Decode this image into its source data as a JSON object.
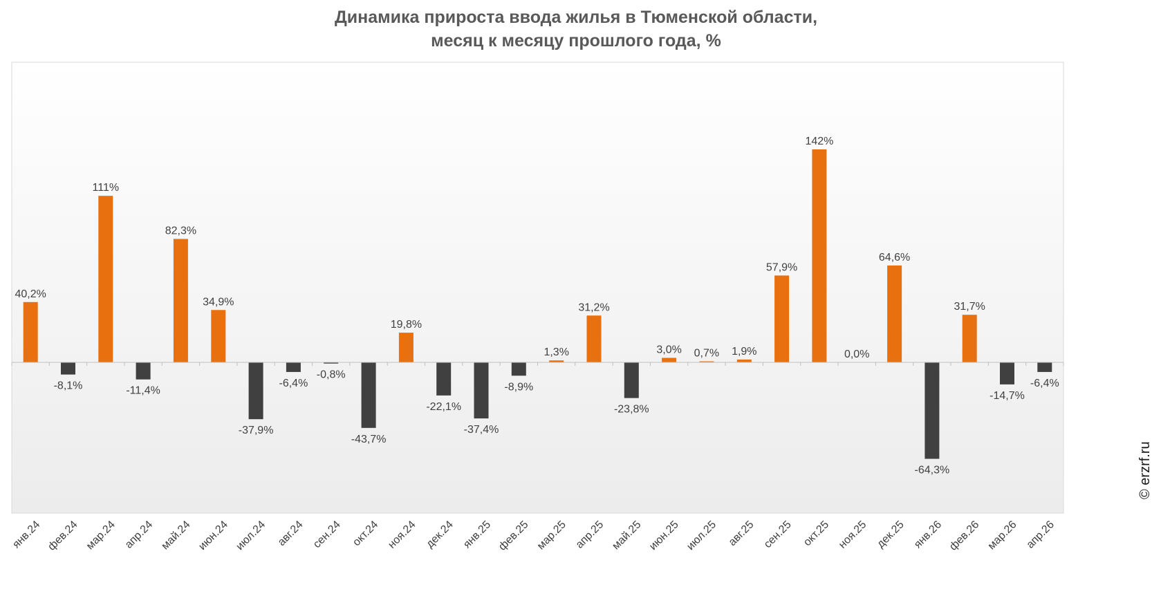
{
  "title_lines": [
    "Динамика прироста ввода жилья в Тюменской области,",
    "месяц к месяцу прошлого года, %"
  ],
  "watermark": "© erzrf.ru",
  "colors": {
    "positive": "#e8700e",
    "negative": "#404040",
    "label_text": "#404040",
    "axis": "#bfbfbf",
    "plot_border": "#d9d9d9",
    "plot_bg_top": "#ffffff",
    "plot_bg_bottom": "#ececec"
  },
  "chart_data": {
    "type": "bar",
    "title": "Динамика прироста ввода жилья в Тюменской области, месяц к месяцу прошлого года, %",
    "xlabel": "",
    "ylabel": "",
    "ylim": [
      -100,
      200
    ],
    "grid": false,
    "legend": "none",
    "categories": [
      "янв.24",
      "фев.24",
      "мар.24",
      "апр.24",
      "май.24",
      "июн.24",
      "июл.24",
      "авг.24",
      "сен.24",
      "окт.24",
      "ноя.24",
      "дек.24",
      "янв.25",
      "фев.25",
      "мар.25",
      "апр.25",
      "май.25",
      "июн.25",
      "июл.25",
      "авг.25",
      "сен.25",
      "окт.25",
      "ноя.25",
      "дек.25",
      "янв.26",
      "фев.26",
      "мар.26",
      "апр.26"
    ],
    "values": [
      40.2,
      -8.1,
      111,
      -11.4,
      82.3,
      34.9,
      -37.9,
      -6.4,
      -0.8,
      -43.7,
      19.8,
      -22.1,
      -37.4,
      -8.9,
      1.3,
      31.2,
      -23.8,
      3.0,
      0.7,
      1.9,
      57.9,
      142,
      0.0,
      64.6,
      -64.3,
      31.7,
      -14.7,
      -6.4
    ],
    "data_labels": [
      "40,2%",
      "-8,1%",
      "111%",
      "-11,4%",
      "82,3%",
      "34,9%",
      "-37,9%",
      "-6,4%",
      "-0,8%",
      "-43,7%",
      "19,8%",
      "-22,1%",
      "-37,4%",
      "-8,9%",
      "1,3%",
      "31,2%",
      "-23,8%",
      "3,0%",
      "0,7%",
      "1,9%",
      "57,9%",
      "142%",
      "0,0%",
      "64,6%",
      "-64,3%",
      "31,7%",
      "-14,7%",
      "-6,4%"
    ]
  }
}
